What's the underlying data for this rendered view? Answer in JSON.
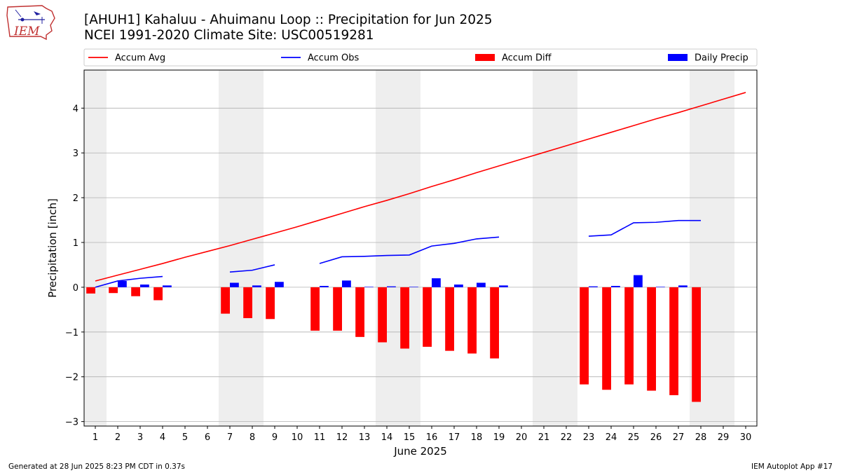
{
  "header": {
    "title_line1": "[AHUH1] Kahaluu - Ahuimanu Loop :: Precipitation for Jun 2025",
    "title_line2": "NCEI 1991-2020 Climate Site: USC00519281"
  },
  "logo": {
    "text": "IEM",
    "icon": "iowa-state-outline-icon"
  },
  "footer": {
    "left": "Generated at 28 Jun 2025 8:23 PM CDT in 0.37s",
    "right": "IEM Autoplot App #17"
  },
  "colors": {
    "accum_avg": "#ff0000",
    "accum_obs": "#0000ff",
    "accum_diff": "#ff0000",
    "daily_precip": "#0000ff",
    "weekend_shade": "#eeeeee",
    "grid": "#b0b0b0"
  },
  "chart_data": {
    "type": "bar",
    "xlabel": "June 2025",
    "ylabel": "Precipitation [inch]",
    "xlim": [
      0.5,
      30.5
    ],
    "ylim": [
      -3.1,
      4.85
    ],
    "yticks": [
      -3,
      -2,
      -1,
      0,
      1,
      2,
      3,
      4
    ],
    "ytick_labels": [
      "−3",
      "−2",
      "−1",
      "0",
      "1",
      "2",
      "3",
      "4"
    ],
    "x": [
      1,
      2,
      3,
      4,
      5,
      6,
      7,
      8,
      9,
      10,
      11,
      12,
      13,
      14,
      15,
      16,
      17,
      18,
      19,
      20,
      21,
      22,
      23,
      24,
      25,
      26,
      27,
      28,
      29,
      30
    ],
    "grid": "horizontal",
    "legend_position": "top",
    "shaded_days": [
      [
        0.5,
        1.5
      ],
      [
        6.5,
        8.5
      ],
      [
        13.5,
        15.5
      ],
      [
        20.5,
        22.5
      ],
      [
        27.5,
        29.5
      ]
    ],
    "series": [
      {
        "name": "Accum Avg",
        "kind": "line",
        "values": [
          0.14,
          0.27,
          0.4,
          0.53,
          0.67,
          0.8,
          0.93,
          1.07,
          1.21,
          1.35,
          1.5,
          1.65,
          1.8,
          1.94,
          2.09,
          2.25,
          2.4,
          2.56,
          2.71,
          2.86,
          3.01,
          3.16,
          3.31,
          3.46,
          3.61,
          3.76,
          3.9,
          4.05,
          4.2,
          4.35
        ]
      },
      {
        "name": "Accum Obs",
        "kind": "line",
        "values": [
          0.0,
          0.14,
          0.2,
          0.24,
          null,
          null,
          0.34,
          0.38,
          0.5,
          null,
          0.53,
          0.68,
          0.69,
          0.71,
          0.72,
          0.92,
          0.98,
          1.08,
          1.12,
          null,
          null,
          null,
          1.14,
          1.17,
          1.44,
          1.45,
          1.49,
          1.49,
          null,
          null
        ]
      },
      {
        "name": "Accum Diff",
        "kind": "bar",
        "values": [
          -0.14,
          -0.13,
          -0.2,
          -0.29,
          null,
          null,
          -0.59,
          -0.69,
          -0.71,
          null,
          -0.97,
          -0.97,
          -1.11,
          -1.23,
          -1.37,
          -1.33,
          -1.42,
          -1.48,
          -1.59,
          null,
          null,
          null,
          -2.17,
          -2.29,
          -2.17,
          -2.31,
          -2.41,
          -2.56,
          null,
          null
        ]
      },
      {
        "name": "Daily Precip",
        "kind": "bar",
        "values": [
          0.0,
          0.14,
          0.06,
          0.04,
          null,
          null,
          0.1,
          0.04,
          0.12,
          null,
          0.03,
          0.15,
          0.01,
          0.02,
          0.01,
          0.2,
          0.06,
          0.1,
          0.04,
          null,
          null,
          null,
          0.02,
          0.03,
          0.27,
          0.01,
          0.04,
          0.0,
          null,
          null
        ]
      }
    ]
  }
}
